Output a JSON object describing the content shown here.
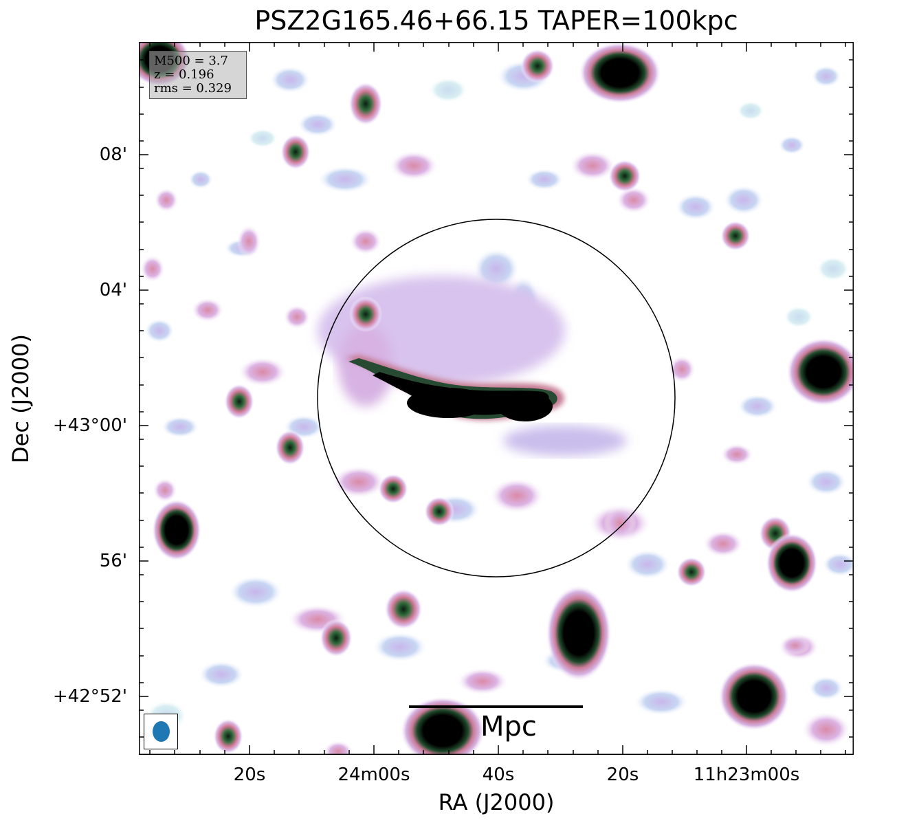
{
  "title": "PSZ2G165.46+66.15 TAPER=100kpc",
  "axes": {
    "x_label": "RA (J2000)",
    "y_label": "Dec (J2000)",
    "x_ticks": [
      "20s",
      "24m00s",
      "40s",
      "20s",
      "11h23m00s"
    ],
    "y_ticks": [
      "08'",
      "04'",
      "+43°00'",
      "56'",
      "+42°52'"
    ]
  },
  "info": {
    "mass": "M500 = 3.7",
    "redshift": "z = 0.196",
    "rms": "rms = 0.329"
  },
  "scale_bar": {
    "label": "Mpc"
  },
  "colors": {
    "beam": "#1f77b4",
    "frame": "#000000",
    "circle": "#000000"
  }
}
